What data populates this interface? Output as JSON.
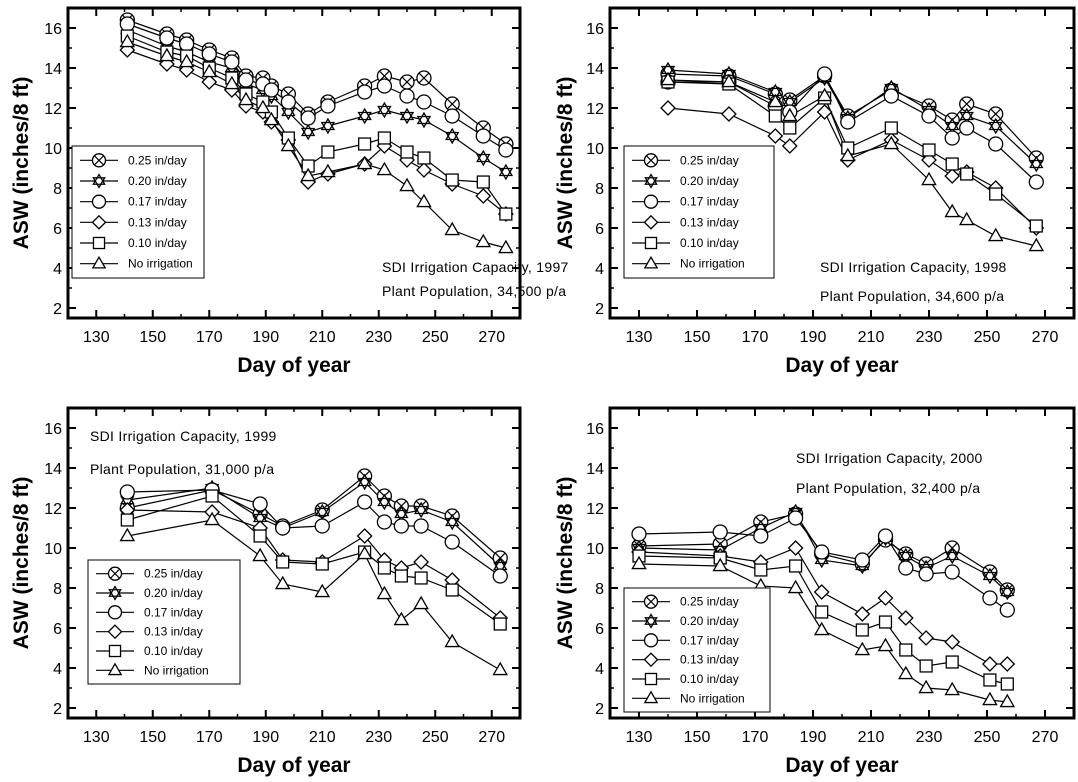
{
  "figure": {
    "legend_entries": [
      "0.25 in/day",
      "0.20 in/day",
      "0.17 in/day",
      "0.13 in/day",
      "0.10 in/day",
      "No irrigation"
    ],
    "series_markers": [
      "crossed-circle",
      "star-triangle",
      "circle",
      "diamond",
      "square",
      "triangle"
    ]
  },
  "chart_data": [
    {
      "type": "line",
      "xlabel": "Day of year",
      "ylabel": "ASW (inches/8 ft)",
      "xlim": [
        120,
        280
      ],
      "ylim": [
        1.5,
        17
      ],
      "xticks": [
        130,
        150,
        170,
        190,
        210,
        230,
        250,
        270
      ],
      "yticks": [
        2,
        4,
        6,
        8,
        10,
        12,
        14,
        16
      ],
      "annotations": [
        "SDI Irrigation Capacity, 1997",
        "Plant Population, 34,500 p/a"
      ],
      "legend_position": "bottom-left",
      "x": [
        141,
        155,
        162,
        170,
        178,
        183,
        189,
        192,
        198,
        205,
        212,
        225,
        232,
        240,
        246,
        256,
        267,
        275
      ],
      "series": [
        {
          "name": "0.25 in/day",
          "values": [
            16.4,
            15.7,
            15.4,
            14.9,
            14.5,
            13.6,
            13.5,
            13.1,
            12.7,
            11.7,
            12.3,
            13.1,
            13.6,
            13.3,
            13.5,
            12.2,
            11.0,
            10.2
          ]
        },
        {
          "name": "0.20 in/day",
          "values": [
            15.9,
            15.1,
            14.8,
            14.3,
            14.0,
            13.2,
            12.9,
            12.6,
            11.8,
            10.8,
            11.1,
            11.6,
            11.9,
            11.6,
            11.4,
            10.6,
            9.5,
            8.8
          ]
        },
        {
          "name": "0.17 in/day",
          "values": [
            16.2,
            15.5,
            15.2,
            14.7,
            14.3,
            13.4,
            13.2,
            12.9,
            12.3,
            11.5,
            12.1,
            12.8,
            13.1,
            12.6,
            12.3,
            11.6,
            10.6,
            9.9
          ]
        },
        {
          "name": "0.13 in/day",
          "values": [
            14.9,
            14.2,
            13.9,
            13.3,
            12.9,
            12.1,
            11.8,
            11.3,
            10.4,
            8.3,
            8.7,
            9.2,
            10.1,
            9.4,
            8.9,
            8.2,
            7.6,
            6.7
          ]
        },
        {
          "name": "0.10 in/day",
          "values": [
            15.6,
            14.8,
            14.6,
            14.0,
            13.5,
            12.7,
            12.3,
            11.8,
            10.5,
            9.1,
            9.8,
            10.2,
            10.5,
            9.8,
            9.5,
            8.4,
            8.3,
            6.7
          ]
        },
        {
          "name": "No irrigation",
          "values": [
            15.3,
            14.6,
            14.3,
            13.8,
            13.2,
            12.4,
            12.0,
            11.4,
            10.1,
            8.6,
            8.8,
            9.2,
            8.9,
            8.1,
            7.3,
            5.9,
            5.3,
            5.0
          ]
        }
      ]
    },
    {
      "type": "line",
      "xlabel": "Day of year",
      "ylabel": "ASW (inches/8 ft)",
      "xlim": [
        120,
        280
      ],
      "ylim": [
        1.5,
        17
      ],
      "xticks": [
        130,
        150,
        170,
        190,
        210,
        230,
        250,
        270
      ],
      "yticks": [
        2,
        4,
        6,
        8,
        10,
        12,
        14,
        16
      ],
      "annotations": [
        "SDI Irrigation Capacity, 1998",
        "Plant Population, 34,600 p/a"
      ],
      "legend_position": "bottom-left",
      "x": [
        140,
        161,
        177,
        182,
        194,
        202,
        217,
        230,
        238,
        243,
        253,
        267
      ],
      "series": [
        {
          "name": "0.25 in/day",
          "values": [
            13.7,
            13.6,
            12.7,
            12.4,
            13.6,
            11.6,
            12.9,
            12.1,
            11.4,
            12.2,
            11.7,
            9.5
          ]
        },
        {
          "name": "0.20 in/day",
          "values": [
            13.9,
            13.7,
            12.8,
            12.3,
            13.5,
            11.5,
            13.0,
            11.9,
            11.1,
            11.6,
            11.1,
            9.2
          ]
        },
        {
          "name": "0.17 in/day",
          "values": [
            13.3,
            13.3,
            12.1,
            11.8,
            13.7,
            11.3,
            12.6,
            11.6,
            10.5,
            11.0,
            10.2,
            8.3
          ]
        },
        {
          "name": "0.13 in/day",
          "values": [
            12.0,
            11.7,
            10.6,
            10.1,
            11.8,
            9.4,
            10.4,
            9.4,
            8.6,
            8.8,
            8.0,
            6.0
          ]
        },
        {
          "name": "0.10 in/day",
          "values": [
            13.3,
            13.2,
            11.6,
            11.0,
            12.5,
            10.0,
            11.0,
            9.9,
            9.2,
            8.7,
            7.7,
            6.1
          ]
        },
        {
          "name": "No irrigation",
          "values": [
            13.4,
            13.3,
            12.3,
            11.6,
            12.6,
            9.6,
            10.2,
            8.4,
            6.8,
            6.4,
            5.6,
            5.1
          ]
        }
      ]
    },
    {
      "type": "line",
      "xlabel": "Day of year",
      "ylabel": "ASW (inches/8 ft)",
      "xlim": [
        120,
        280
      ],
      "ylim": [
        1.5,
        17
      ],
      "xticks": [
        130,
        150,
        170,
        190,
        210,
        230,
        250,
        270
      ],
      "yticks": [
        2,
        4,
        6,
        8,
        10,
        12,
        14,
        16
      ],
      "annotations": [
        "SDI Irrigation Capacity, 1999",
        "Plant Population, 31,000 p/a"
      ],
      "legend_position": "bottom-left",
      "x": [
        141,
        171,
        188,
        196,
        210,
        225,
        232,
        238,
        245,
        256,
        273
      ],
      "series": [
        {
          "name": "0.25 in/day",
          "values": [
            12.0,
            12.9,
            11.7,
            11.1,
            11.9,
            13.6,
            12.6,
            12.1,
            12.1,
            11.6,
            9.5
          ]
        },
        {
          "name": "0.20 in/day",
          "values": [
            12.4,
            13.0,
            11.5,
            11.0,
            11.8,
            13.3,
            12.3,
            11.7,
            11.9,
            11.3,
            9.1
          ]
        },
        {
          "name": "0.17 in/day",
          "values": [
            12.8,
            12.9,
            12.2,
            11.0,
            11.1,
            12.3,
            11.3,
            11.1,
            11.1,
            10.3,
            8.6
          ]
        },
        {
          "name": "0.13 in/day",
          "values": [
            11.9,
            11.8,
            11.0,
            9.4,
            9.3,
            10.6,
            9.4,
            9.0,
            9.3,
            8.4,
            6.5
          ]
        },
        {
          "name": "0.10 in/day",
          "values": [
            11.4,
            12.6,
            10.6,
            9.3,
            9.2,
            9.8,
            9.0,
            8.6,
            8.5,
            7.9,
            6.2
          ]
        },
        {
          "name": "No irrigation",
          "values": [
            10.6,
            11.4,
            9.6,
            8.2,
            7.8,
            9.7,
            7.7,
            6.4,
            7.2,
            5.3,
            3.9
          ]
        }
      ]
    },
    {
      "type": "line",
      "xlabel": "Day of year",
      "ylabel": "ASW (inches/8 ft)",
      "xlim": [
        120,
        280
      ],
      "ylim": [
        1.5,
        17
      ],
      "xticks": [
        130,
        150,
        170,
        190,
        210,
        230,
        250,
        270
      ],
      "yticks": [
        2,
        4,
        6,
        8,
        10,
        12,
        14,
        16
      ],
      "annotations": [
        "SDI Irrigation Capacity, 2000",
        "Plant Population, 32,400 p/a"
      ],
      "legend_position": "bottom-left",
      "x": [
        130,
        158,
        172,
        184,
        193,
        207,
        215,
        222,
        229,
        238,
        251,
        257
      ],
      "series": [
        {
          "name": "0.25 in/day",
          "values": [
            10.1,
            10.2,
            11.3,
            11.7,
            9.7,
            9.2,
            10.4,
            9.7,
            9.2,
            10.0,
            8.8,
            7.9
          ]
        },
        {
          "name": "0.20 in/day",
          "values": [
            10.0,
            9.9,
            11.0,
            11.8,
            9.4,
            9.1,
            10.5,
            9.6,
            9.0,
            9.6,
            8.6,
            7.8
          ]
        },
        {
          "name": "0.17 in/day",
          "values": [
            10.7,
            10.8,
            10.6,
            11.5,
            9.8,
            9.4,
            10.6,
            9.0,
            8.7,
            8.8,
            7.5,
            6.9
          ]
        },
        {
          "name": "0.13 in/day",
          "values": [
            9.8,
            9.6,
            9.3,
            10.0,
            7.8,
            6.7,
            7.5,
            6.5,
            5.5,
            5.3,
            4.2,
            4.2
          ]
        },
        {
          "name": "0.10 in/day",
          "values": [
            9.6,
            9.5,
            8.9,
            9.1,
            6.8,
            5.9,
            6.3,
            4.9,
            4.1,
            4.3,
            3.4,
            3.2
          ]
        },
        {
          "name": "No irrigation",
          "values": [
            9.2,
            9.1,
            8.1,
            8.0,
            5.9,
            4.9,
            5.1,
            3.7,
            3.0,
            2.9,
            2.4,
            2.3
          ]
        }
      ]
    }
  ]
}
